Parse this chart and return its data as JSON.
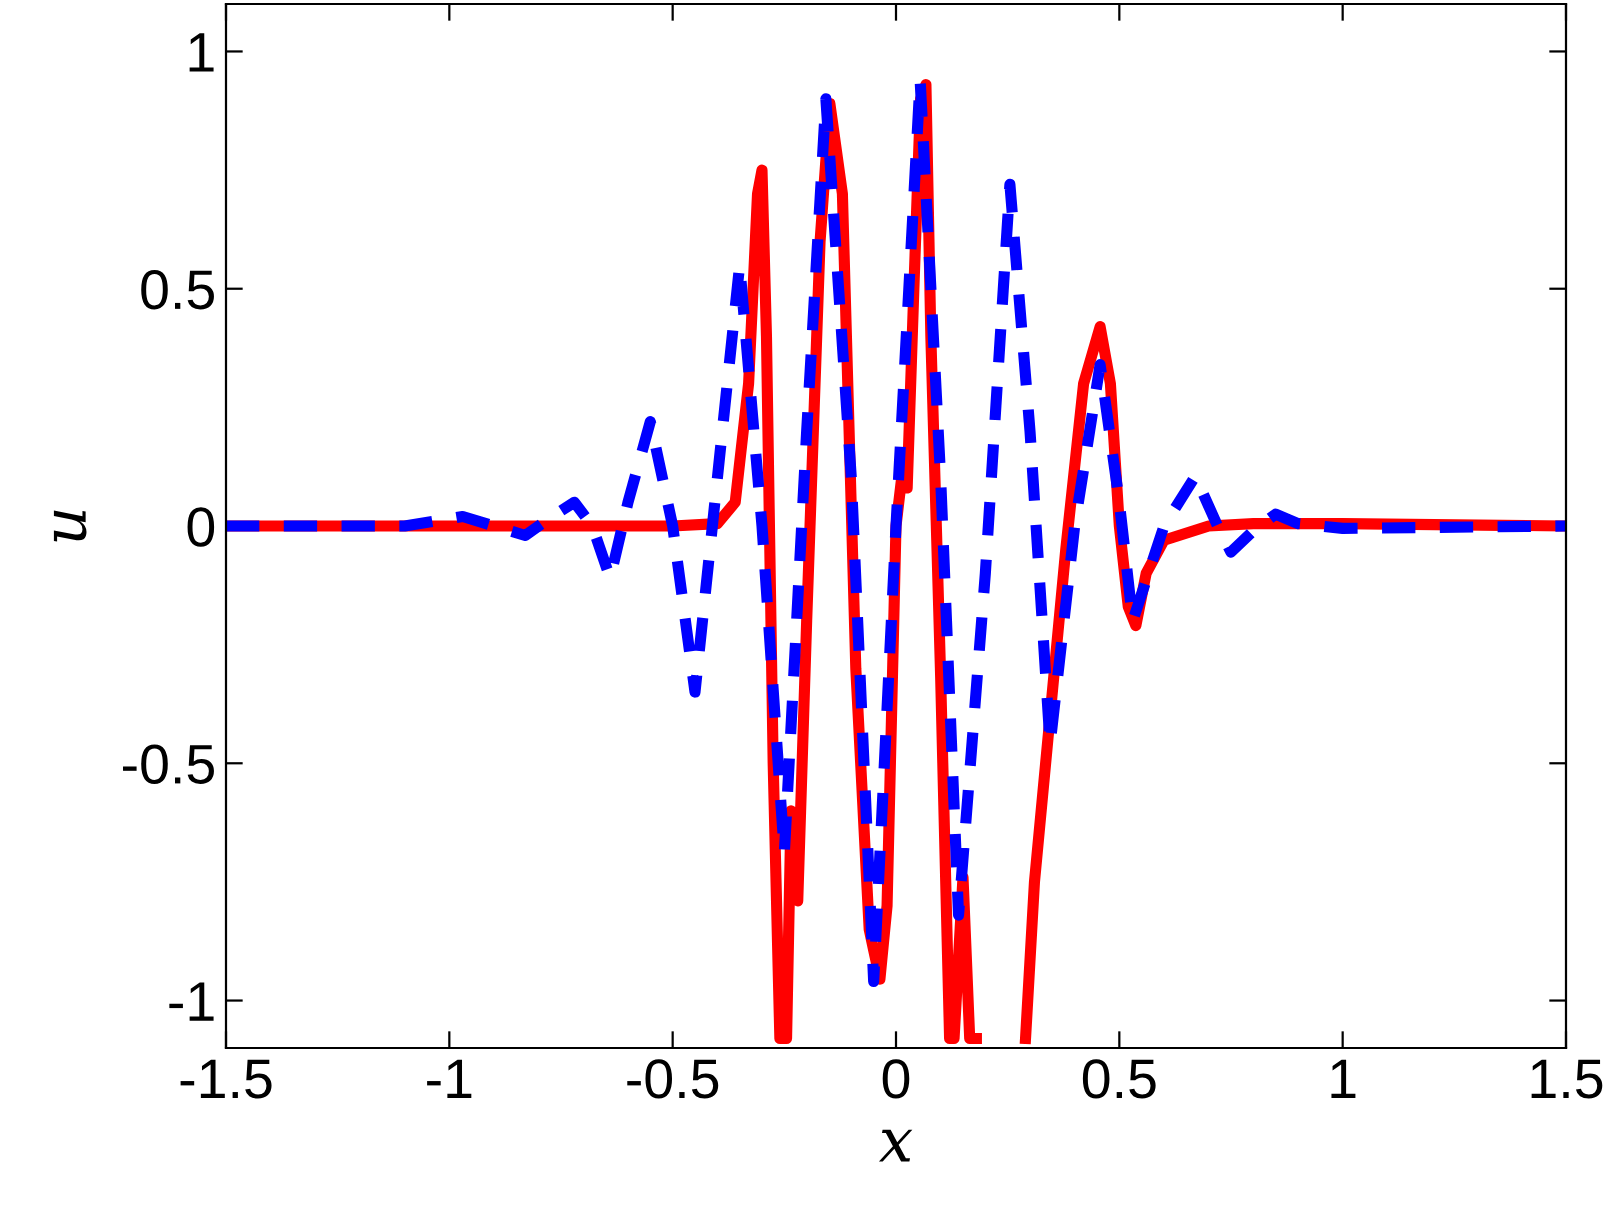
{
  "chart_data": {
    "type": "line",
    "xlabel": "x",
    "ylabel": "u",
    "xlim": [
      -1.5,
      1.5
    ],
    "ylim": [
      -1.1,
      1.1
    ],
    "xticks": [
      -1.5,
      -1,
      -0.5,
      0,
      0.5,
      1,
      1.5
    ],
    "yticks": [
      -1,
      -0.5,
      0,
      0.5,
      1
    ],
    "grid": false,
    "legend": false,
    "series": [
      {
        "color": "#ff0000",
        "line_style": "solid",
        "x": [
          -1.5,
          -0.5,
          -0.4,
          -0.36,
          -0.33,
          -0.31,
          -0.3,
          -0.29,
          -0.275,
          -0.26,
          -0.245,
          -0.235,
          -0.22,
          -0.2,
          -0.17,
          -0.148,
          -0.12,
          -0.09,
          -0.06,
          -0.036,
          -0.02,
          0.0,
          0.015,
          0.025,
          0.04,
          0.055,
          0.067,
          0.078,
          0.09,
          0.1,
          0.12,
          0.13,
          0.15,
          0.165,
          0.18,
          0.2,
          0.29,
          0.31,
          0.34,
          0.38,
          0.42,
          0.457,
          0.48,
          0.5,
          0.52,
          0.537,
          0.56,
          0.6,
          0.7,
          0.8,
          1.0,
          1.5
        ],
        "values": [
          0,
          0,
          0.005,
          0.05,
          0.3,
          0.7,
          0.75,
          0.4,
          -0.5,
          -1.08,
          -1.08,
          -0.6,
          -0.79,
          -0.2,
          0.6,
          0.89,
          0.7,
          -0.3,
          -0.85,
          -0.955,
          -0.8,
          0.0,
          0.12,
          0.08,
          0.5,
          0.9,
          0.93,
          0.4,
          0.01,
          -0.32,
          -1.08,
          -1.08,
          -0.74,
          -1.08,
          -1.08,
          null,
          -1.08,
          -0.75,
          -0.45,
          -0.05,
          0.3,
          0.42,
          0.3,
          0.0,
          -0.17,
          -0.21,
          -0.1,
          -0.03,
          0.0,
          0.005,
          0.005,
          0
        ]
      },
      {
        "color": "#0000ff",
        "line_style": "dashed",
        "x": [
          -1.5,
          -1.1,
          -0.97,
          -0.9,
          -0.83,
          -0.77,
          -0.72,
          -0.68,
          -0.64,
          -0.6,
          -0.55,
          -0.5,
          -0.45,
          -0.4,
          -0.35,
          -0.3,
          -0.25,
          -0.2,
          -0.157,
          -0.1,
          -0.05,
          0.0,
          0.054,
          0.1,
          0.14,
          0.2,
          0.255,
          0.3,
          0.345,
          0.4,
          0.457,
          0.5,
          0.53,
          0.6,
          0.67,
          0.72,
          0.75,
          0.8,
          0.85,
          0.9,
          1.0,
          1.5
        ],
        "values": [
          0,
          0,
          0.02,
          0,
          -0.02,
          0.02,
          0.05,
          0,
          -0.11,
          0.05,
          0.22,
          0,
          -0.35,
          0.1,
          0.55,
          0,
          -0.69,
          0.2,
          0.9,
          0.1,
          -0.96,
          0,
          0.94,
          0.1,
          -0.82,
          -0.1,
          0.72,
          0.2,
          -0.46,
          0,
          0.34,
          0.05,
          -0.2,
          0.0,
          0.105,
          0.0,
          -0.055,
          -0.01,
          0.025,
          0.005,
          -0.005,
          0
        ]
      }
    ]
  }
}
